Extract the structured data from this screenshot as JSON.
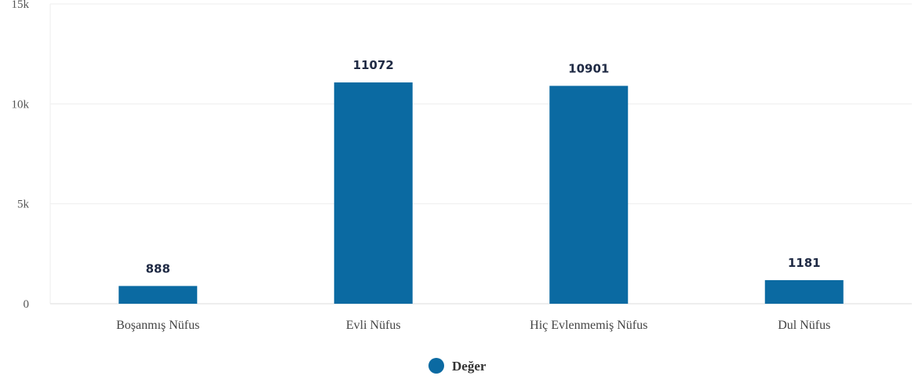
{
  "chart_data": {
    "type": "bar",
    "categories": [
      "Boşanmış Nüfus",
      "Evli Nüfus",
      "Hiç Evlenmemiş Nüfus",
      "Dul Nüfus"
    ],
    "series": [
      {
        "name": "Değer",
        "values": [
          888,
          11072,
          10901,
          1181
        ],
        "color": "#0b6aa2"
      }
    ],
    "data_labels": [
      "888",
      "11072",
      "10901",
      "1181"
    ],
    "y_ticks": [
      {
        "value": 0,
        "label": "0"
      },
      {
        "value": 5000,
        "label": "5k"
      },
      {
        "value": 10000,
        "label": "10k"
      },
      {
        "value": 15000,
        "label": "15k"
      }
    ],
    "ylim": [
      0,
      15000
    ],
    "grid": true,
    "legend_position": "bottom-center"
  }
}
